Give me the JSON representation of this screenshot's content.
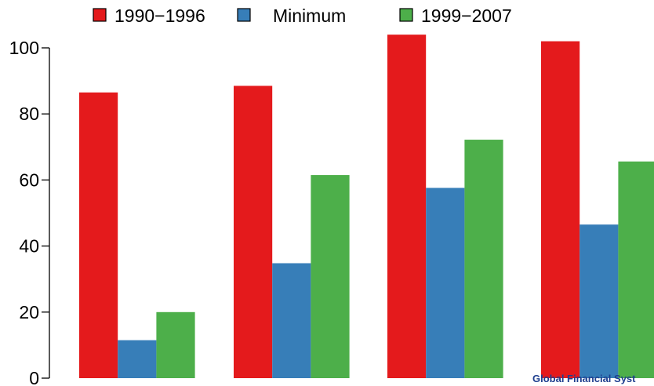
{
  "chart_data": {
    "type": "bar",
    "categories": [
      "",
      "",
      "",
      ""
    ],
    "series": [
      {
        "name": "1990−1996",
        "color": "#e41a1c",
        "values": [
          86.5,
          88.5,
          104,
          102
        ]
      },
      {
        "name": "Minimum",
        "color": "#377eb8",
        "values": [
          11.5,
          34.8,
          57.6,
          46.5
        ]
      },
      {
        "name": "1999−2007",
        "color": "#4daf4a",
        "values": [
          20,
          61.5,
          72.2,
          65.6
        ]
      }
    ],
    "title": "",
    "xlabel": "",
    "ylabel": "",
    "ylim": [
      0,
      100
    ],
    "yticks": [
      "0",
      "20",
      "40",
      "60",
      "80",
      "100"
    ],
    "grid": false,
    "legend": "top"
  },
  "footer": {
    "text": "Global Financial Syst"
  }
}
